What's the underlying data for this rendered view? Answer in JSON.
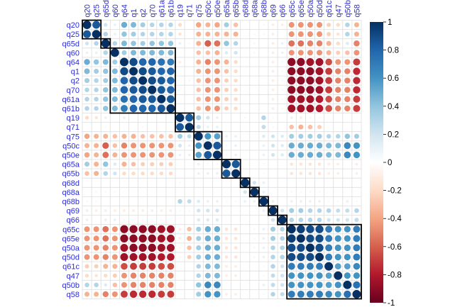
{
  "chart_data": {
    "type": "heatmap",
    "subtype": "correlation-matrix",
    "labels": [
      "q20",
      "q25",
      "q65d",
      "q60",
      "q64",
      "q1",
      "q2",
      "q70",
      "q61a",
      "q61b",
      "q19",
      "q71",
      "q75",
      "q50c",
      "q50e",
      "q65a",
      "q65b",
      "q68d",
      "q68a",
      "q68b",
      "q69",
      "q66",
      "q65c",
      "q65e",
      "q50a",
      "q50d",
      "q61c",
      "q47",
      "q50b",
      "q58"
    ],
    "groups": [
      {
        "start": 0,
        "end": 1
      },
      {
        "start": 2,
        "end": 2
      },
      {
        "start": 3,
        "end": 9
      },
      {
        "start": 10,
        "end": 11
      },
      {
        "start": 12,
        "end": 14
      },
      {
        "start": 15,
        "end": 16
      },
      {
        "start": 17,
        "end": 17
      },
      {
        "start": 18,
        "end": 18
      },
      {
        "start": 19,
        "end": 19
      },
      {
        "start": 20,
        "end": 20
      },
      {
        "start": 21,
        "end": 21
      },
      {
        "start": 22,
        "end": 29
      }
    ],
    "matrix": [
      [
        1.0,
        0.85,
        0.2,
        0.1,
        0.5,
        0.45,
        0.35,
        0.3,
        0.3,
        0.3,
        -0.2,
        0.0,
        -0.4,
        -0.35,
        -0.4,
        0.35,
        -0.3,
        0.0,
        0.0,
        0.05,
        -0.1,
        -0.1,
        -0.45,
        -0.45,
        -0.45,
        -0.45,
        -0.25,
        -0.2,
        0.3,
        -0.35
      ],
      [
        0.85,
        1.0,
        0.3,
        0.1,
        0.4,
        0.35,
        0.3,
        0.3,
        0.3,
        0.3,
        -0.15,
        0.0,
        -0.35,
        -0.35,
        -0.35,
        -0.35,
        -0.35,
        0.0,
        0.05,
        0.05,
        -0.1,
        0.0,
        -0.45,
        -0.45,
        -0.45,
        -0.45,
        -0.25,
        -0.15,
        0.3,
        -0.35
      ],
      [
        0.2,
        0.3,
        1.0,
        0.3,
        0.45,
        0.4,
        0.35,
        0.4,
        0.4,
        0.4,
        0.1,
        0.05,
        -0.35,
        -0.6,
        -0.55,
        0.4,
        0.3,
        0.0,
        0.05,
        0.0,
        -0.1,
        0.1,
        -0.55,
        -0.55,
        -0.5,
        -0.5,
        -0.35,
        -0.2,
        0.15,
        -0.5
      ],
      [
        0.1,
        0.1,
        0.3,
        1.0,
        0.35,
        0.45,
        0.45,
        0.45,
        0.45,
        0.45,
        0.0,
        0.0,
        -0.3,
        -0.3,
        -0.35,
        0.15,
        0.2,
        0.0,
        0.05,
        0.0,
        -0.1,
        0.1,
        -0.45,
        -0.45,
        -0.45,
        -0.45,
        -0.35,
        -0.25,
        -0.3,
        -0.45
      ],
      [
        0.5,
        0.4,
        0.45,
        0.35,
        1.0,
        0.9,
        0.8,
        0.8,
        0.75,
        0.7,
        -0.1,
        0.0,
        -0.35,
        -0.5,
        -0.45,
        -0.35,
        -0.2,
        0.0,
        0.0,
        0.0,
        -0.1,
        0.05,
        -0.9,
        -0.9,
        -0.85,
        -0.85,
        -0.65,
        -0.45,
        -0.45,
        -0.7
      ],
      [
        0.45,
        0.35,
        0.4,
        0.45,
        0.9,
        1.0,
        0.9,
        0.85,
        0.8,
        0.8,
        0.0,
        0.0,
        -0.35,
        -0.45,
        -0.45,
        -0.3,
        -0.2,
        0.0,
        0.0,
        0.0,
        -0.1,
        0.05,
        -0.9,
        -0.9,
        -0.9,
        -0.85,
        -0.7,
        -0.5,
        -0.5,
        -0.75
      ],
      [
        0.35,
        0.3,
        0.35,
        0.45,
        0.8,
        0.9,
        1.0,
        0.9,
        0.85,
        0.8,
        0.0,
        0.05,
        -0.3,
        -0.45,
        -0.45,
        -0.25,
        -0.2,
        0.0,
        0.0,
        0.0,
        -0.1,
        0.05,
        -0.9,
        -0.9,
        -0.9,
        -0.85,
        -0.7,
        -0.5,
        -0.5,
        -0.75
      ],
      [
        0.3,
        0.3,
        0.4,
        0.45,
        0.8,
        0.85,
        0.9,
        1.0,
        0.85,
        0.8,
        0.0,
        0.0,
        -0.3,
        -0.45,
        -0.45,
        -0.25,
        -0.2,
        0.0,
        0.0,
        0.0,
        -0.1,
        0.05,
        -0.9,
        -0.9,
        -0.9,
        -0.85,
        -0.7,
        -0.5,
        -0.5,
        -0.75
      ],
      [
        0.3,
        0.3,
        0.4,
        0.45,
        0.75,
        0.8,
        0.85,
        0.85,
        1.0,
        0.85,
        0.0,
        0.0,
        -0.3,
        -0.45,
        -0.45,
        -0.25,
        -0.2,
        0.0,
        0.0,
        0.0,
        -0.1,
        0.05,
        -0.85,
        -0.85,
        -0.85,
        -0.8,
        -0.65,
        -0.5,
        -0.5,
        -0.7
      ],
      [
        0.3,
        0.3,
        0.4,
        0.45,
        0.7,
        0.8,
        0.8,
        0.8,
        0.85,
        1.0,
        0.0,
        0.0,
        -0.3,
        -0.45,
        -0.45,
        -0.25,
        -0.2,
        0.0,
        0.0,
        0.0,
        -0.1,
        0.05,
        -0.85,
        -0.85,
        -0.85,
        -0.8,
        -0.65,
        -0.5,
        -0.5,
        -0.7
      ],
      [
        -0.2,
        -0.15,
        0.1,
        0.0,
        -0.1,
        0.0,
        0.0,
        0.0,
        0.0,
        0.0,
        1.0,
        0.85,
        0.35,
        0.2,
        0.1,
        0.0,
        0.0,
        0.05,
        0.0,
        0.3,
        0.05,
        0.0,
        -0.1,
        -0.1,
        -0.05,
        -0.05,
        0.0,
        0.0,
        0.0,
        0.0
      ],
      [
        0.0,
        0.0,
        0.05,
        0.0,
        0.0,
        0.0,
        0.05,
        0.0,
        0.0,
        0.0,
        0.85,
        1.0,
        0.25,
        0.1,
        0.1,
        0.0,
        0.0,
        0.0,
        0.0,
        0.25,
        0.05,
        0.0,
        -0.3,
        -0.35,
        -0.3,
        -0.25,
        0.0,
        0.0,
        0.0,
        0.0
      ],
      [
        -0.4,
        -0.35,
        -0.35,
        -0.3,
        -0.35,
        -0.35,
        -0.3,
        -0.3,
        -0.3,
        -0.3,
        0.35,
        0.25,
        1.0,
        0.6,
        0.55,
        0.1,
        0.1,
        0.0,
        0.0,
        0.15,
        0.2,
        0.15,
        0.35,
        0.35,
        0.35,
        0.35,
        0.3,
        0.3,
        0.4,
        0.35
      ],
      [
        -0.35,
        -0.35,
        -0.6,
        -0.3,
        -0.5,
        -0.45,
        -0.45,
        -0.45,
        -0.45,
        -0.45,
        0.2,
        0.1,
        0.6,
        1.0,
        0.85,
        0.05,
        0.1,
        0.0,
        0.0,
        0.1,
        0.2,
        0.15,
        0.5,
        0.5,
        0.5,
        0.5,
        0.45,
        0.45,
        0.65,
        0.6
      ],
      [
        -0.4,
        -0.35,
        -0.55,
        -0.35,
        -0.45,
        -0.45,
        -0.45,
        -0.45,
        -0.45,
        -0.45,
        0.1,
        0.1,
        0.55,
        0.85,
        1.0,
        0.05,
        0.1,
        0.0,
        0.0,
        0.1,
        0.2,
        0.15,
        0.5,
        0.5,
        0.5,
        0.5,
        0.45,
        0.45,
        0.65,
        0.6
      ],
      [
        0.35,
        -0.35,
        0.4,
        0.15,
        -0.35,
        -0.3,
        -0.25,
        -0.25,
        -0.25,
        -0.25,
        0.0,
        0.0,
        0.1,
        0.05,
        0.05,
        1.0,
        0.85,
        0.0,
        0.0,
        0.05,
        0.0,
        0.0,
        -0.15,
        -0.15,
        -0.15,
        -0.15,
        -0.1,
        -0.1,
        0.0,
        -0.1
      ],
      [
        -0.3,
        -0.35,
        0.3,
        0.2,
        -0.2,
        -0.2,
        -0.2,
        -0.2,
        -0.2,
        -0.2,
        0.0,
        0.0,
        0.1,
        0.1,
        0.1,
        0.85,
        1.0,
        0.0,
        0.0,
        0.05,
        0.0,
        0.0,
        -0.15,
        -0.15,
        -0.15,
        -0.15,
        -0.1,
        -0.1,
        0.0,
        -0.1
      ],
      [
        0.0,
        0.0,
        0.0,
        0.0,
        0.0,
        0.0,
        0.0,
        0.0,
        0.0,
        0.0,
        0.05,
        0.0,
        0.0,
        0.0,
        0.0,
        0.0,
        0.0,
        1.0,
        0.2,
        0.1,
        0.0,
        0.0,
        0.0,
        0.0,
        0.0,
        0.0,
        0.0,
        0.0,
        0.0,
        0.0
      ],
      [
        0.0,
        0.05,
        0.05,
        0.05,
        0.0,
        0.0,
        0.0,
        0.0,
        0.0,
        0.0,
        0.0,
        0.0,
        0.0,
        0.0,
        0.0,
        0.0,
        0.0,
        0.2,
        1.0,
        0.1,
        0.0,
        0.0,
        0.05,
        0.05,
        0.05,
        0.05,
        0.0,
        0.0,
        0.0,
        0.0
      ],
      [
        0.05,
        0.05,
        0.0,
        0.0,
        0.0,
        0.0,
        0.0,
        0.0,
        0.0,
        0.0,
        0.3,
        0.25,
        0.15,
        0.1,
        0.1,
        0.05,
        0.05,
        0.1,
        0.1,
        1.0,
        0.1,
        0.0,
        0.1,
        0.1,
        0.1,
        0.1,
        0.05,
        0.05,
        0.1,
        0.05
      ],
      [
        -0.1,
        -0.1,
        -0.1,
        -0.1,
        -0.1,
        -0.1,
        -0.1,
        -0.1,
        -0.1,
        -0.1,
        0.05,
        0.05,
        0.2,
        0.2,
        0.2,
        0.0,
        0.0,
        0.0,
        0.0,
        0.1,
        1.0,
        0.2,
        0.35,
        0.35,
        0.3,
        0.3,
        0.3,
        0.25,
        0.25,
        0.3
      ],
      [
        -0.1,
        0.0,
        0.1,
        0.1,
        0.05,
        0.05,
        0.05,
        0.05,
        0.05,
        0.05,
        0.0,
        0.0,
        0.15,
        0.15,
        0.15,
        0.0,
        0.0,
        0.0,
        0.0,
        0.0,
        0.2,
        1.0,
        0.3,
        0.3,
        0.3,
        0.3,
        0.2,
        0.2,
        0.2,
        0.25
      ],
      [
        -0.45,
        -0.45,
        -0.55,
        -0.45,
        -0.9,
        -0.9,
        -0.9,
        -0.9,
        -0.85,
        -0.85,
        -0.1,
        -0.3,
        0.35,
        0.5,
        0.5,
        -0.15,
        -0.15,
        0.0,
        0.05,
        0.1,
        0.35,
        0.3,
        1.0,
        0.95,
        0.9,
        0.9,
        0.7,
        0.6,
        0.6,
        0.7
      ],
      [
        -0.45,
        -0.45,
        -0.55,
        -0.45,
        -0.9,
        -0.9,
        -0.9,
        -0.9,
        -0.85,
        -0.85,
        -0.1,
        -0.35,
        0.35,
        0.5,
        0.5,
        -0.15,
        -0.15,
        0.0,
        0.05,
        0.1,
        0.35,
        0.3,
        0.95,
        1.0,
        0.9,
        0.9,
        0.7,
        0.6,
        0.6,
        0.7
      ],
      [
        -0.45,
        -0.45,
        -0.5,
        -0.45,
        -0.85,
        -0.9,
        -0.9,
        -0.9,
        -0.85,
        -0.85,
        -0.05,
        -0.3,
        0.35,
        0.5,
        0.5,
        -0.15,
        -0.15,
        0.0,
        0.05,
        0.1,
        0.3,
        0.3,
        0.9,
        0.9,
        1.0,
        0.9,
        0.7,
        0.6,
        0.6,
        0.7
      ],
      [
        -0.45,
        -0.45,
        -0.5,
        -0.45,
        -0.85,
        -0.85,
        -0.85,
        -0.85,
        -0.8,
        -0.8,
        -0.05,
        -0.25,
        0.35,
        0.5,
        0.5,
        -0.15,
        -0.15,
        0.0,
        0.05,
        0.1,
        0.3,
        0.3,
        0.9,
        0.9,
        0.9,
        1.0,
        0.7,
        0.6,
        0.6,
        0.7
      ],
      [
        -0.25,
        -0.25,
        -0.35,
        -0.35,
        -0.65,
        -0.7,
        -0.7,
        -0.7,
        -0.65,
        -0.65,
        0.0,
        0.0,
        0.3,
        0.45,
        0.45,
        -0.1,
        -0.1,
        0.0,
        0.0,
        0.05,
        0.3,
        0.2,
        0.7,
        0.7,
        0.7,
        0.7,
        1.0,
        0.55,
        0.55,
        0.65
      ],
      [
        -0.2,
        -0.15,
        -0.2,
        -0.25,
        -0.45,
        -0.5,
        -0.5,
        -0.5,
        -0.5,
        -0.5,
        0.0,
        0.0,
        0.3,
        0.45,
        0.45,
        -0.1,
        -0.1,
        0.0,
        0.0,
        0.05,
        0.25,
        0.2,
        0.6,
        0.6,
        0.6,
        0.6,
        0.55,
        1.0,
        0.6,
        0.6
      ],
      [
        0.3,
        0.3,
        0.15,
        -0.3,
        -0.45,
        -0.5,
        -0.5,
        -0.5,
        -0.5,
        -0.5,
        0.0,
        0.0,
        0.4,
        0.65,
        0.65,
        0.0,
        0.0,
        0.0,
        0.0,
        0.1,
        0.25,
        0.2,
        0.6,
        0.6,
        0.6,
        0.6,
        0.55,
        0.6,
        1.0,
        0.75
      ],
      [
        -0.35,
        -0.35,
        -0.5,
        -0.45,
        -0.7,
        -0.75,
        -0.75,
        -0.75,
        -0.7,
        -0.7,
        0.0,
        0.0,
        0.35,
        0.6,
        0.6,
        -0.1,
        -0.1,
        0.0,
        0.0,
        0.05,
        0.3,
        0.25,
        0.7,
        0.7,
        0.7,
        0.7,
        0.65,
        0.6,
        0.75,
        1.0
      ]
    ],
    "colorbar": {
      "ticks": [
        "1",
        "0.8",
        "0.6",
        "0.4",
        "0.2",
        "0",
        "-0.2",
        "-0.4",
        "-0.6",
        "-0.8",
        "-1"
      ],
      "range": [
        -1,
        1
      ],
      "low_color": "#67001f",
      "mid_color": "#ffffff",
      "high_color": "#053061"
    },
    "colors": {
      "label": "#2b2bd6",
      "grid": "#dddddd",
      "box": "#000000"
    }
  }
}
